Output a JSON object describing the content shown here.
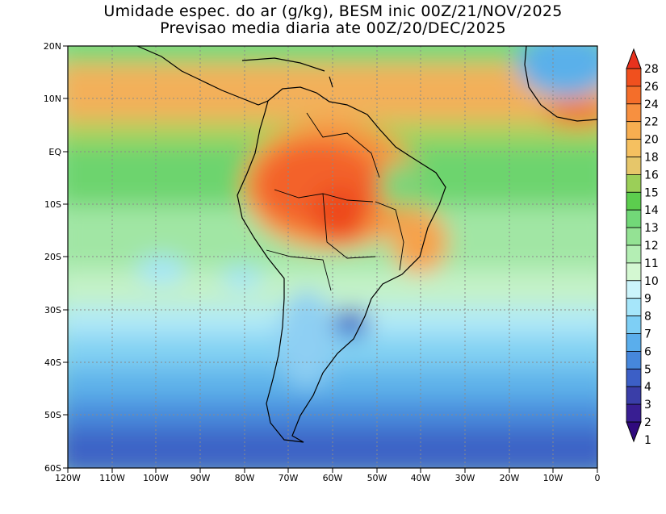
{
  "title_line1": "Umidade espec. do ar (g/kg), BESM inic 00Z/21/NOV/2025",
  "title_line2": "Previsao media diaria ate 00Z/20/DEC/2025",
  "lat_labels": [
    "20N",
    "10N",
    "EQ",
    "10S",
    "20S",
    "30S",
    "40S",
    "50S",
    "60S"
  ],
  "lon_labels": [
    "120W",
    "110W",
    "100W",
    "90W",
    "80W",
    "70W",
    "60W",
    "50W",
    "40W",
    "30W",
    "20W",
    "10W",
    "0"
  ],
  "colorbar": {
    "labels": [
      "28",
      "26",
      "24",
      "22",
      "20",
      "18",
      "16",
      "15",
      "14",
      "13",
      "12",
      "11",
      "10",
      "9",
      "8",
      "7",
      "6",
      "5",
      "4",
      "3",
      "2",
      "1"
    ],
    "colors": [
      "#e8321e",
      "#f0501e",
      "#f46e2a",
      "#f79040",
      "#f7ae50",
      "#f5c060",
      "#e6c66a",
      "#9bcf58",
      "#5ccd4e",
      "#72d878",
      "#94e294",
      "#b4eeb4",
      "#d4f8d2",
      "#ccf4fb",
      "#a6e6fa",
      "#7ecff5",
      "#5aaeec",
      "#4687dc",
      "#3c5fc6",
      "#3a3ea8",
      "#381e92",
      "#300a7e"
    ]
  }
}
